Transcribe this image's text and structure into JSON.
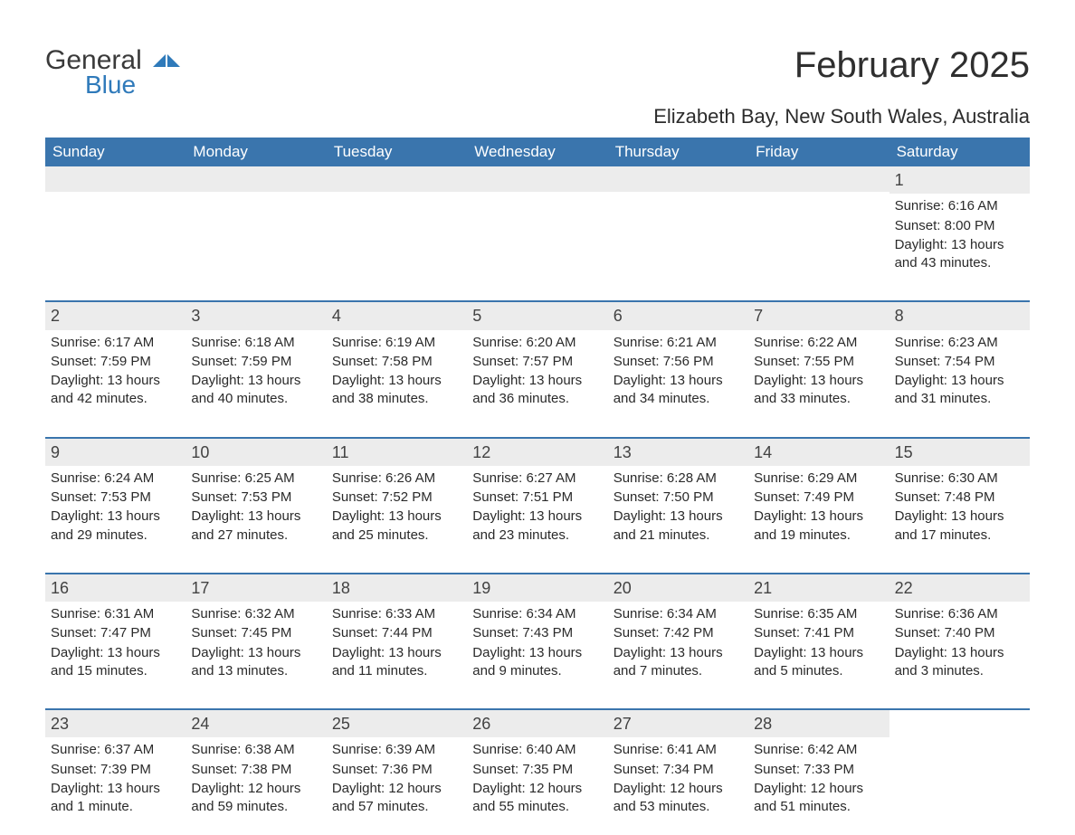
{
  "logo": {
    "part1": "General",
    "part2": "Blue",
    "part1_color": "#3a3a3a",
    "part2_color": "#2f7aba",
    "arrow_color": "#2f7aba"
  },
  "title": "February 2025",
  "location": "Elizabeth Bay, New South Wales, Australia",
  "header_bg": "#3a75ad",
  "header_fg": "#ffffff",
  "daynum_bg": "#ececec",
  "page_bg": "#ffffff",
  "text_color": "#2a2a2a",
  "sep_color": "#3a75ad",
  "title_fontsize": 40,
  "location_fontsize": 22,
  "dow_fontsize": 17,
  "body_fontsize": 15,
  "calendar": {
    "type": "calendar-table",
    "columns": 7,
    "dow": [
      "Sunday",
      "Monday",
      "Tuesday",
      "Wednesday",
      "Thursday",
      "Friday",
      "Saturday"
    ],
    "first_weekday_index": 6,
    "days": [
      {
        "n": 1,
        "sunrise": "6:16 AM",
        "sunset": "8:00 PM",
        "daylight": "13 hours and 43 minutes."
      },
      {
        "n": 2,
        "sunrise": "6:17 AM",
        "sunset": "7:59 PM",
        "daylight": "13 hours and 42 minutes."
      },
      {
        "n": 3,
        "sunrise": "6:18 AM",
        "sunset": "7:59 PM",
        "daylight": "13 hours and 40 minutes."
      },
      {
        "n": 4,
        "sunrise": "6:19 AM",
        "sunset": "7:58 PM",
        "daylight": "13 hours and 38 minutes."
      },
      {
        "n": 5,
        "sunrise": "6:20 AM",
        "sunset": "7:57 PM",
        "daylight": "13 hours and 36 minutes."
      },
      {
        "n": 6,
        "sunrise": "6:21 AM",
        "sunset": "7:56 PM",
        "daylight": "13 hours and 34 minutes."
      },
      {
        "n": 7,
        "sunrise": "6:22 AM",
        "sunset": "7:55 PM",
        "daylight": "13 hours and 33 minutes."
      },
      {
        "n": 8,
        "sunrise": "6:23 AM",
        "sunset": "7:54 PM",
        "daylight": "13 hours and 31 minutes."
      },
      {
        "n": 9,
        "sunrise": "6:24 AM",
        "sunset": "7:53 PM",
        "daylight": "13 hours and 29 minutes."
      },
      {
        "n": 10,
        "sunrise": "6:25 AM",
        "sunset": "7:53 PM",
        "daylight": "13 hours and 27 minutes."
      },
      {
        "n": 11,
        "sunrise": "6:26 AM",
        "sunset": "7:52 PM",
        "daylight": "13 hours and 25 minutes."
      },
      {
        "n": 12,
        "sunrise": "6:27 AM",
        "sunset": "7:51 PM",
        "daylight": "13 hours and 23 minutes."
      },
      {
        "n": 13,
        "sunrise": "6:28 AM",
        "sunset": "7:50 PM",
        "daylight": "13 hours and 21 minutes."
      },
      {
        "n": 14,
        "sunrise": "6:29 AM",
        "sunset": "7:49 PM",
        "daylight": "13 hours and 19 minutes."
      },
      {
        "n": 15,
        "sunrise": "6:30 AM",
        "sunset": "7:48 PM",
        "daylight": "13 hours and 17 minutes."
      },
      {
        "n": 16,
        "sunrise": "6:31 AM",
        "sunset": "7:47 PM",
        "daylight": "13 hours and 15 minutes."
      },
      {
        "n": 17,
        "sunrise": "6:32 AM",
        "sunset": "7:45 PM",
        "daylight": "13 hours and 13 minutes."
      },
      {
        "n": 18,
        "sunrise": "6:33 AM",
        "sunset": "7:44 PM",
        "daylight": "13 hours and 11 minutes."
      },
      {
        "n": 19,
        "sunrise": "6:34 AM",
        "sunset": "7:43 PM",
        "daylight": "13 hours and 9 minutes."
      },
      {
        "n": 20,
        "sunrise": "6:34 AM",
        "sunset": "7:42 PM",
        "daylight": "13 hours and 7 minutes."
      },
      {
        "n": 21,
        "sunrise": "6:35 AM",
        "sunset": "7:41 PM",
        "daylight": "13 hours and 5 minutes."
      },
      {
        "n": 22,
        "sunrise": "6:36 AM",
        "sunset": "7:40 PM",
        "daylight": "13 hours and 3 minutes."
      },
      {
        "n": 23,
        "sunrise": "6:37 AM",
        "sunset": "7:39 PM",
        "daylight": "13 hours and 1 minute."
      },
      {
        "n": 24,
        "sunrise": "6:38 AM",
        "sunset": "7:38 PM",
        "daylight": "12 hours and 59 minutes."
      },
      {
        "n": 25,
        "sunrise": "6:39 AM",
        "sunset": "7:36 PM",
        "daylight": "12 hours and 57 minutes."
      },
      {
        "n": 26,
        "sunrise": "6:40 AM",
        "sunset": "7:35 PM",
        "daylight": "12 hours and 55 minutes."
      },
      {
        "n": 27,
        "sunrise": "6:41 AM",
        "sunset": "7:34 PM",
        "daylight": "12 hours and 53 minutes."
      },
      {
        "n": 28,
        "sunrise": "6:42 AM",
        "sunset": "7:33 PM",
        "daylight": "12 hours and 51 minutes."
      }
    ],
    "labels": {
      "sunrise": "Sunrise: ",
      "sunset": "Sunset: ",
      "daylight": "Daylight: "
    }
  }
}
